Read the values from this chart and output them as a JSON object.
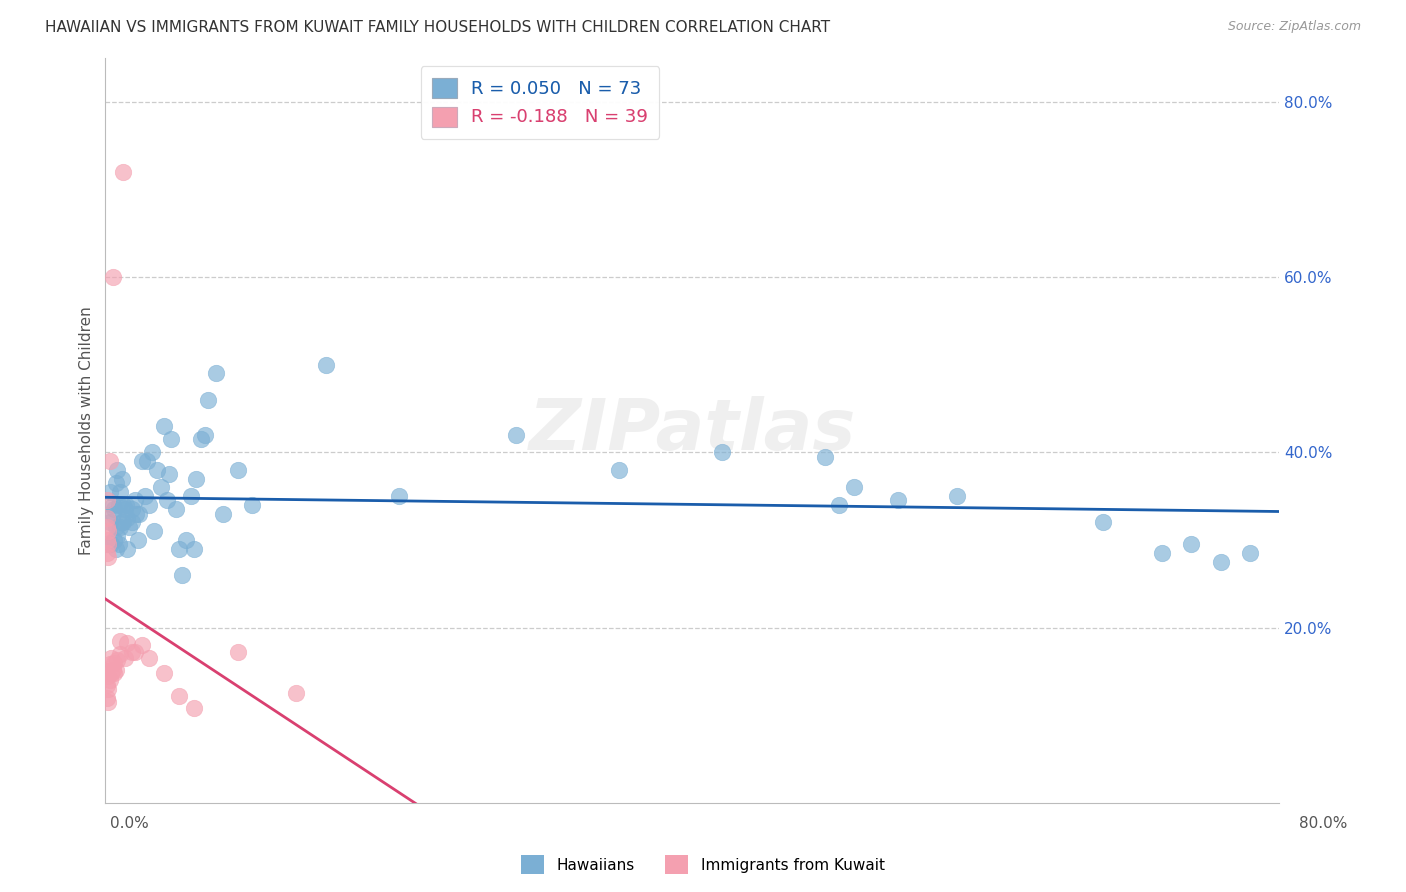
{
  "title": "HAWAIIAN VS IMMIGRANTS FROM KUWAIT FAMILY HOUSEHOLDS WITH CHILDREN CORRELATION CHART",
  "source": "Source: ZipAtlas.com",
  "ylabel": "Family Households with Children",
  "xmin": 0.0,
  "xmax": 0.8,
  "ymin": 0.0,
  "ymax": 0.85,
  "yticks_right": [
    0.2,
    0.4,
    0.6,
    0.8
  ],
  "ytick_labels_right": [
    "20.0%",
    "40.0%",
    "60.0%",
    "80.0%"
  ],
  "blue_R": 0.05,
  "blue_N": 73,
  "pink_R": -0.188,
  "pink_N": 39,
  "blue_color": "#7BAFD4",
  "pink_color": "#F4A0B0",
  "blue_line_color": "#1A5DAB",
  "pink_line_color": "#D94070",
  "pink_line_dash_color": "#DDAACC",
  "watermark": "ZIPatlas",
  "blue_points_x": [
    0.002,
    0.003,
    0.003,
    0.004,
    0.005,
    0.005,
    0.006,
    0.006,
    0.007,
    0.007,
    0.007,
    0.008,
    0.008,
    0.009,
    0.009,
    0.01,
    0.01,
    0.011,
    0.011,
    0.012,
    0.012,
    0.013,
    0.014,
    0.015,
    0.015,
    0.016,
    0.018,
    0.018,
    0.02,
    0.021,
    0.022,
    0.023,
    0.025,
    0.027,
    0.028,
    0.03,
    0.032,
    0.033,
    0.035,
    0.038,
    0.04,
    0.042,
    0.043,
    0.045,
    0.048,
    0.05,
    0.052,
    0.055,
    0.058,
    0.06,
    0.062,
    0.065,
    0.068,
    0.07,
    0.075,
    0.08,
    0.09,
    0.1,
    0.15,
    0.2,
    0.28,
    0.35,
    0.42,
    0.5,
    0.58,
    0.68,
    0.72,
    0.74,
    0.76,
    0.78,
    0.49,
    0.51,
    0.54
  ],
  "blue_points_y": [
    0.295,
    0.32,
    0.355,
    0.295,
    0.33,
    0.34,
    0.3,
    0.335,
    0.29,
    0.315,
    0.365,
    0.305,
    0.38,
    0.295,
    0.34,
    0.315,
    0.355,
    0.32,
    0.37,
    0.32,
    0.34,
    0.335,
    0.34,
    0.29,
    0.325,
    0.315,
    0.335,
    0.32,
    0.345,
    0.33,
    0.3,
    0.33,
    0.39,
    0.35,
    0.39,
    0.34,
    0.4,
    0.31,
    0.38,
    0.36,
    0.43,
    0.345,
    0.375,
    0.415,
    0.335,
    0.29,
    0.26,
    0.3,
    0.35,
    0.29,
    0.37,
    0.415,
    0.42,
    0.46,
    0.49,
    0.33,
    0.38,
    0.34,
    0.5,
    0.35,
    0.42,
    0.38,
    0.4,
    0.34,
    0.35,
    0.32,
    0.285,
    0.295,
    0.275,
    0.285,
    0.395,
    0.36,
    0.345
  ],
  "pink_points_x": [
    0.001,
    0.001,
    0.001,
    0.001,
    0.001,
    0.001,
    0.001,
    0.001,
    0.002,
    0.002,
    0.002,
    0.002,
    0.002,
    0.002,
    0.003,
    0.003,
    0.003,
    0.004,
    0.004,
    0.005,
    0.005,
    0.006,
    0.006,
    0.007,
    0.008,
    0.01,
    0.01,
    0.012,
    0.013,
    0.015,
    0.018,
    0.02,
    0.025,
    0.03,
    0.04,
    0.05,
    0.06,
    0.09,
    0.13
  ],
  "pink_points_y": [
    0.285,
    0.3,
    0.315,
    0.325,
    0.345,
    0.15,
    0.135,
    0.12,
    0.28,
    0.295,
    0.31,
    0.145,
    0.13,
    0.115,
    0.14,
    0.158,
    0.39,
    0.148,
    0.165,
    0.152,
    0.6,
    0.148,
    0.16,
    0.152,
    0.163,
    0.185,
    0.17,
    0.72,
    0.165,
    0.182,
    0.172,
    0.172,
    0.18,
    0.165,
    0.148,
    0.122,
    0.108,
    0.172,
    0.125
  ],
  "pink_line_xmax_solid": 0.22,
  "pink_line_xmax_dash": 0.5
}
